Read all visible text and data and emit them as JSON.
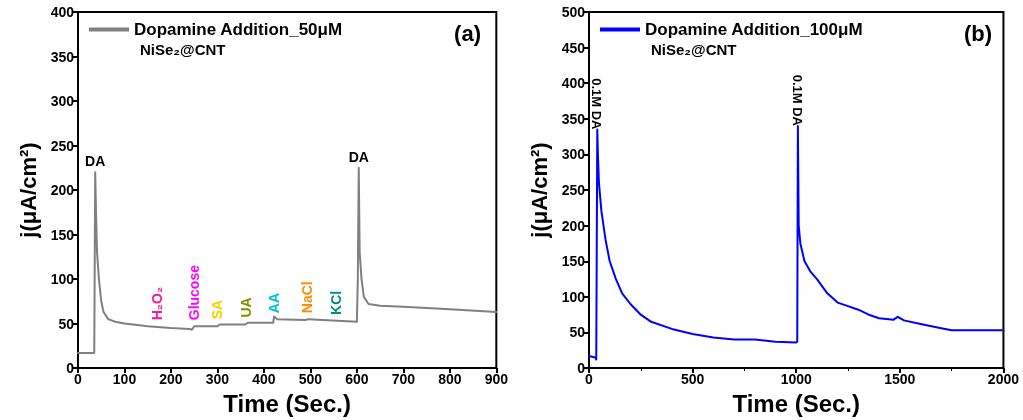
{
  "chart_data": [
    {
      "type": "line",
      "xlabel": "Time (Sec.)",
      "ylabel": "j(μA/cm²)",
      "xlim": [
        0,
        900
      ],
      "xticks": [
        0,
        100,
        200,
        300,
        400,
        500,
        600,
        700,
        800,
        900
      ],
      "ylim": [
        0,
        400
      ],
      "yticks": [
        0,
        50,
        100,
        150,
        200,
        250,
        300,
        350,
        400
      ],
      "grid": false,
      "legend": "top left",
      "marker": "none",
      "line_style": "solid",
      "series": [
        {
          "name": "Dopamine Addition_50μM",
          "color": "#808080",
          "x": [
            0,
            35,
            37,
            39,
            41,
            45,
            50,
            55,
            65,
            80,
            100,
            150,
            200,
            240,
            245,
            250,
            300,
            305,
            360,
            365,
            420,
            422,
            428,
            490,
            495,
            600,
            602,
            604,
            606,
            610,
            615,
            625,
            650,
            700,
            800,
            900
          ],
          "values": [
            17,
            17,
            220,
            170,
            130,
            100,
            75,
            63,
            55,
            52,
            50,
            47,
            45,
            44,
            43,
            47,
            47,
            49,
            49,
            51,
            51,
            58,
            55,
            54,
            55,
            52,
            100,
            225,
            130,
            100,
            80,
            72,
            70,
            69,
            66,
            63
          ]
        }
      ],
      "annotations": [
        "NiSe₂@CNT",
        "(a)",
        {
          "text": "DA",
          "x": 37,
          "y": 220
        },
        {
          "text": "DA",
          "x": 604,
          "y": 225
        },
        {
          "text": "H₂O₂",
          "x": 170,
          "y": 47
        },
        {
          "text": "Glucose",
          "x": 250,
          "y": 47
        },
        {
          "text": "SA",
          "x": 300,
          "y": 48
        },
        {
          "text": "UA",
          "x": 362,
          "y": 50
        },
        {
          "text": "AA",
          "x": 422,
          "y": 55
        },
        {
          "text": "NaCl",
          "x": 492,
          "y": 55
        },
        {
          "text": "KCl",
          "x": 555,
          "y": 53
        }
      ]
    },
    {
      "type": "line",
      "xlabel": "Time (Sec.)",
      "ylabel": "j(μA/cm²)",
      "xlim": [
        0,
        2000
      ],
      "xticks": [
        0,
        500,
        1000,
        1500,
        2000
      ],
      "ylim": [
        0,
        500
      ],
      "yticks": [
        0,
        50,
        100,
        150,
        200,
        250,
        300,
        350,
        400,
        450,
        500
      ],
      "grid": false,
      "legend": "top left",
      "marker": "none",
      "line_style": "solid",
      "series": [
        {
          "name": "Dopamine Addition_100μM",
          "color": "#0000ff",
          "x": [
            0,
            30,
            35,
            38,
            40,
            43,
            48,
            60,
            80,
            100,
            130,
            160,
            200,
            250,
            300,
            400,
            500,
            600,
            700,
            800,
            900,
            1000,
            1005,
            1008,
            1012,
            1020,
            1040,
            1070,
            1100,
            1150,
            1200,
            1250,
            1300,
            1350,
            1400,
            1470,
            1490,
            1520,
            1600,
            1700,
            1750,
            1800,
            2000
          ],
          "values": [
            17,
            15,
            12,
            12,
            335,
            300,
            260,
            220,
            180,
            150,
            125,
            105,
            90,
            75,
            65,
            55,
            48,
            43,
            40,
            40,
            37,
            36,
            37,
            340,
            200,
            175,
            150,
            135,
            125,
            105,
            92,
            87,
            82,
            75,
            70,
            68,
            72,
            67,
            62,
            56,
            53,
            53,
            53
          ]
        }
      ],
      "annotations": [
        "NiSe₂@CNT",
        "(b)",
        {
          "text": "0.1M DA",
          "x": 40,
          "y": 335
        },
        {
          "text": "0.1M DA",
          "x": 1008,
          "y": 340
        }
      ]
    }
  ]
}
